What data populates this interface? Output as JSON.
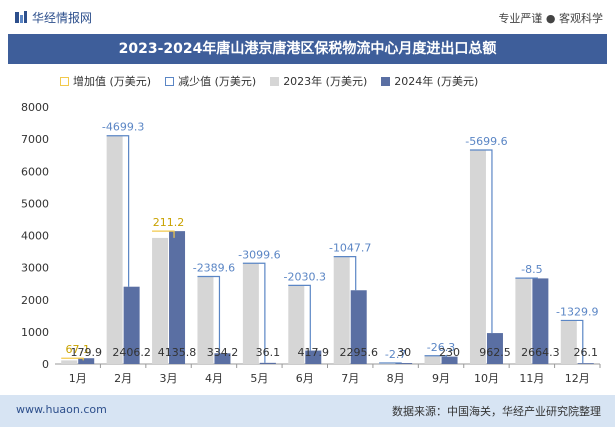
{
  "header": {
    "brand": "华经情报网",
    "slogan": "专业严谨 ● 客观科学"
  },
  "title": "2023-2024年唐山港京唐港区保税物流中心月度进出口总额",
  "legend": {
    "increase": "增加值 (万美元)",
    "decrease": "减少值 (万美元)",
    "y2023": "2023年 (万美元)",
    "y2024": "2024年 (万美元)"
  },
  "colors": {
    "increase": "#f2c94c",
    "decrease": "#5b86c5",
    "y2023": "#d6d6d6",
    "y2024": "#5a6fa3",
    "title_bg": "#3e5e9a",
    "footer_bg": "#d7e4f3"
  },
  "footer": {
    "site": "www.huaon.com",
    "source": "数据来源：中国海关，华经产业研究院整理"
  },
  "chart_data": {
    "type": "bar",
    "categories": [
      "1月",
      "2月",
      "3月",
      "4月",
      "5月",
      "6月",
      "7月",
      "8月",
      "9月",
      "10月",
      "11月",
      "12月"
    ],
    "series": [
      {
        "name": "2023年 (万美元)",
        "values": [
          112.8,
          7105.5,
          3924.6,
          2723.8,
          3135.7,
          2448.2,
          3343.3,
          32.7,
          256.3,
          6662.1,
          2672.8,
          1356.0
        ]
      },
      {
        "name": "2024年 (万美元)",
        "values": [
          179.9,
          2406.2,
          4135.8,
          334.2,
          36.1,
          417.9,
          2295.6,
          30,
          230,
          962.5,
          2664.3,
          26.1
        ]
      }
    ],
    "change_labels": [
      "67.1",
      "-4699.3",
      "211.2",
      "-2389.6",
      "-3099.6",
      "-2030.3",
      "-1047.7",
      "-2.7",
      "-26.3",
      "-5699.6",
      "-8.5",
      "-1329.9"
    ],
    "value_labels_2024": [
      "179.9",
      "2406.2",
      "4135.8",
      "334.2",
      "36.1",
      "417.9",
      "2295.6",
      "30",
      "230",
      "962.5",
      "2664.3",
      "26.1"
    ],
    "ylim": [
      0,
      8000
    ],
    "yticks": [
      "0",
      "1000",
      "2000",
      "3000",
      "4000",
      "5000",
      "6000",
      "7000",
      "8000"
    ],
    "grid": false
  }
}
